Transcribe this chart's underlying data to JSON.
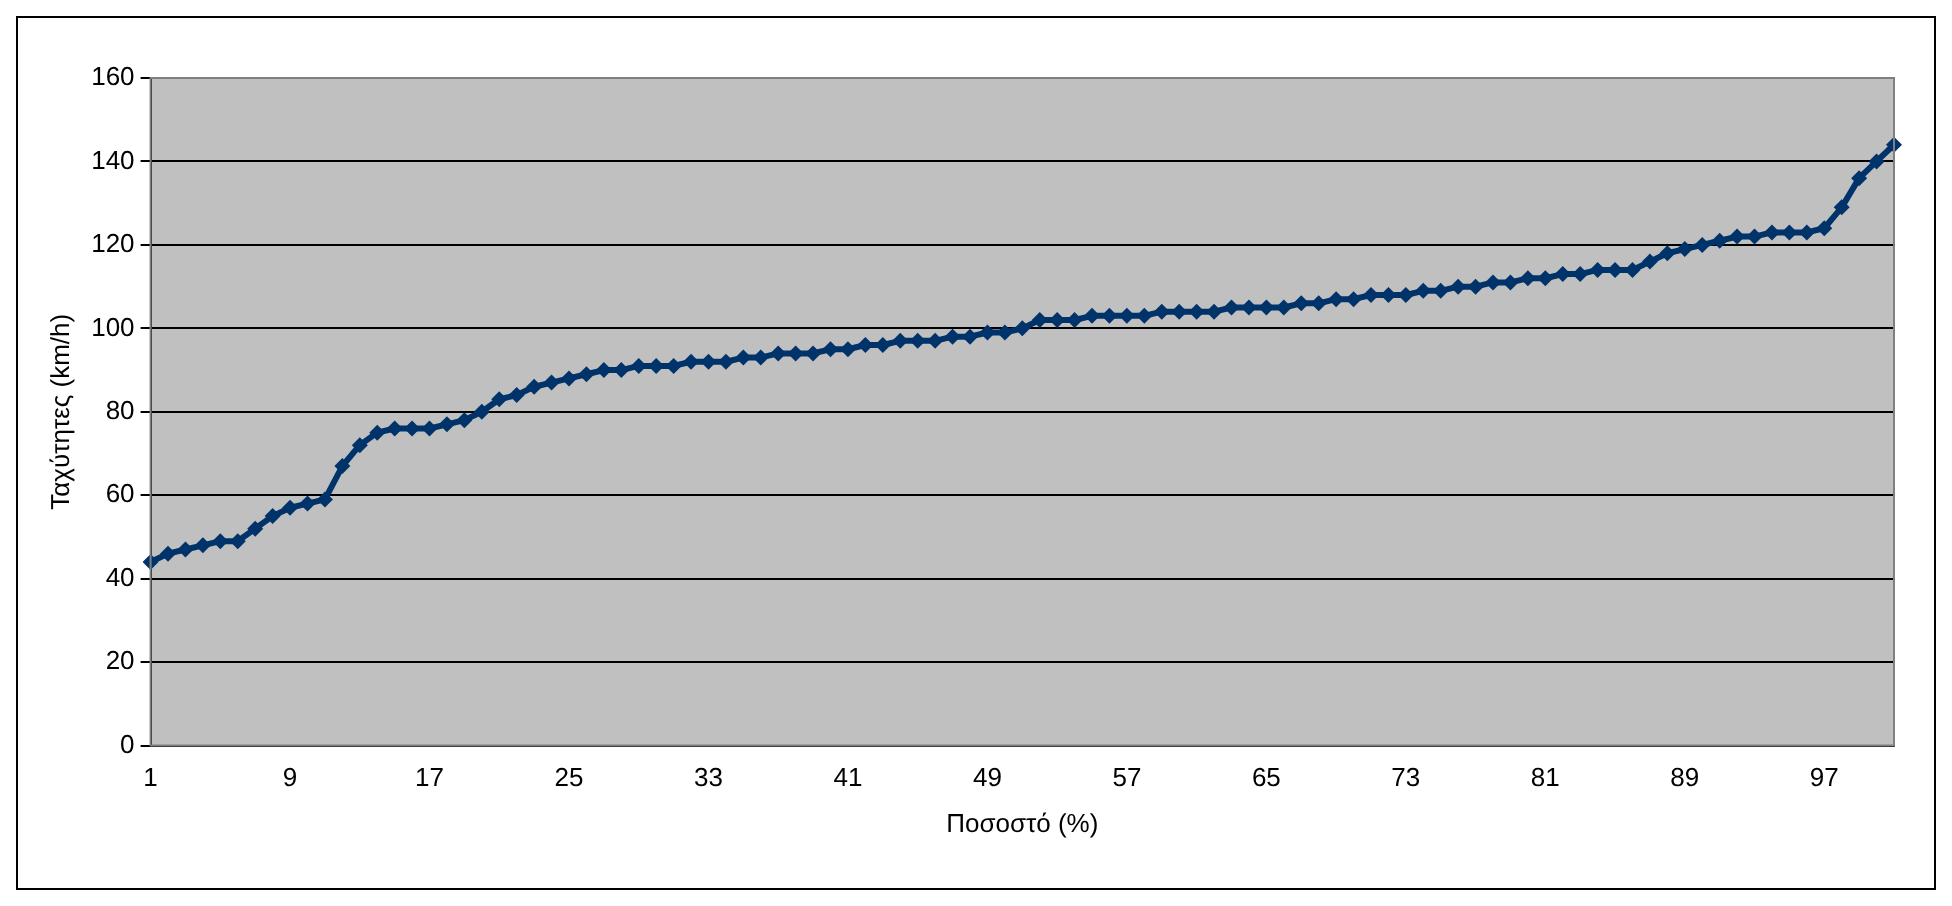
{
  "chart_data": {
    "type": "line",
    "xlabel": "Ποσοστό (%)",
    "ylabel": "Ταχύτητες (km/h)",
    "categories": [
      "1",
      null,
      null,
      null,
      null,
      null,
      null,
      null,
      "9",
      null,
      null,
      null,
      null,
      null,
      null,
      null,
      "17",
      null,
      null,
      null,
      null,
      null,
      null,
      null,
      "25",
      null,
      null,
      null,
      null,
      null,
      null,
      null,
      "33",
      null,
      null,
      null,
      null,
      null,
      null,
      null,
      "41",
      null,
      null,
      null,
      null,
      null,
      null,
      null,
      "49",
      null,
      null,
      null,
      null,
      null,
      null,
      null,
      "57",
      null,
      null,
      null,
      null,
      null,
      null,
      null,
      "65",
      null,
      null,
      null,
      null,
      null,
      null,
      null,
      "73",
      null,
      null,
      null,
      null,
      null,
      null,
      null,
      "81",
      null,
      null,
      null,
      null,
      null,
      null,
      null,
      "89",
      null,
      null,
      null,
      null,
      null,
      null,
      null,
      "97",
      null,
      null,
      null,
      null
    ],
    "series": [
      {
        "color": "#00336a",
        "values": [
          44,
          46,
          47,
          48,
          49,
          49,
          52,
          55,
          57,
          58,
          59,
          67,
          72,
          75,
          76,
          76,
          76,
          77,
          78,
          80,
          83,
          84,
          86,
          87,
          88,
          89,
          90,
          90,
          91,
          91,
          91,
          92,
          92,
          92,
          93,
          93,
          94,
          94,
          94,
          95,
          95,
          96,
          96,
          97,
          97,
          97,
          98,
          98,
          99,
          99,
          100,
          102,
          102,
          102,
          103,
          103,
          103,
          103,
          104,
          104,
          104,
          104,
          105,
          105,
          105,
          105,
          106,
          106,
          107,
          107,
          108,
          108,
          108,
          109,
          109,
          110,
          110,
          111,
          111,
          112,
          112,
          113,
          113,
          114,
          114,
          114,
          116,
          118,
          119,
          120,
          121,
          122,
          122,
          123,
          123,
          123,
          124,
          129,
          136,
          140,
          144
        ]
      }
    ],
    "ylim": [
      0,
      160
    ],
    "yticks": [
      0,
      20,
      40,
      60,
      80,
      100,
      120,
      140,
      160
    ],
    "grid": "y",
    "legend": false,
    "marker": "diamond",
    "line_style": "solid"
  }
}
